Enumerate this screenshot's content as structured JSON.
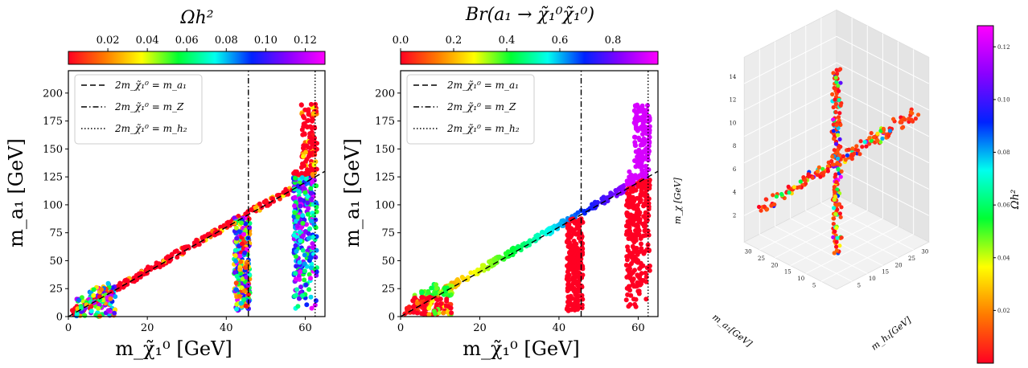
{
  "colormap_stops": [
    "#ff0022",
    "#ff7a00",
    "#ffff00",
    "#00ff33",
    "#00ffee",
    "#0022ff",
    "#8a00ff",
    "#ff00ff"
  ],
  "chart_data": [
    {
      "type": "scatter",
      "colorbar": {
        "label": "Ωh²",
        "ticks": [
          "0.02",
          "0.04",
          "0.06",
          "0.08",
          "0.10",
          "0.12"
        ],
        "range": [
          0,
          0.13
        ]
      },
      "xlabel": "m_χ̃₁⁰ [GeV]",
      "ylabel": "m_a₁ [GeV]",
      "xlim": [
        0,
        65
      ],
      "ylim": [
        0,
        220
      ],
      "xticks": [
        "0",
        "20",
        "40",
        "60"
      ],
      "yticks": [
        "0",
        "25",
        "50",
        "75",
        "100",
        "125",
        "150",
        "175",
        "200"
      ],
      "legend": [
        "2m_χ̃₁⁰ = m_a₁",
        "2m_χ̃₁⁰ = m_Z",
        "2m_χ̃₁⁰ = m_h₂"
      ],
      "legend_position": "top-left",
      "lines": [
        {
          "name": "2m_χ̃₁⁰ = m_a₁",
          "style": "dashed",
          "x": [
            0,
            65
          ],
          "y": [
            0,
            130
          ]
        },
        {
          "name": "2m_χ̃₁⁰ = m_Z",
          "style": "dashdot",
          "x": [
            45.6,
            45.6
          ],
          "y": [
            0,
            220
          ]
        },
        {
          "name": "2m_χ̃₁⁰ = m_h₂",
          "style": "dotted",
          "x": [
            62.5,
            62.5
          ],
          "y": [
            0,
            220
          ]
        }
      ],
      "regions": [
        {
          "name": "diagonal band",
          "x": [
            1,
            58
          ],
          "y_over_x": 2.0,
          "color_value": "low"
        },
        {
          "name": "low-mass cluster",
          "x": [
            2,
            12
          ],
          "y": [
            0,
            30
          ],
          "color_value": "mixed"
        },
        {
          "name": "Z funnel",
          "x": [
            42,
            46
          ],
          "y": [
            5,
            90
          ],
          "color_value": "mixed"
        },
        {
          "name": "h2 funnel",
          "x": [
            57,
            63
          ],
          "y": [
            5,
            190
          ],
          "color_value": "mixed"
        }
      ]
    },
    {
      "type": "scatter",
      "colorbar": {
        "label": "Br(a₁ → χ̃₁⁰χ̃₁⁰)",
        "ticks": [
          "0.0",
          "0.2",
          "0.4",
          "0.6",
          "0.8"
        ],
        "range": [
          0,
          0.97
        ]
      },
      "xlabel": "m_χ̃₁⁰ [GeV]",
      "ylabel": "m_a₁ [GeV]",
      "xlim": [
        0,
        65
      ],
      "ylim": [
        0,
        220
      ],
      "xticks": [
        "0",
        "20",
        "40",
        "60"
      ],
      "yticks": [
        "0",
        "25",
        "50",
        "75",
        "100",
        "125",
        "150",
        "175",
        "200"
      ],
      "legend": [
        "2m_χ̃₁⁰ = m_a₁",
        "2m_χ̃₁⁰ = m_Z",
        "2m_χ̃₁⁰ = m_h₂"
      ],
      "legend_position": "top-left",
      "lines": [
        {
          "name": "2m_χ̃₁⁰ = m_a₁",
          "style": "dashed",
          "x": [
            0,
            65
          ],
          "y": [
            0,
            130
          ]
        },
        {
          "name": "2m_χ̃₁⁰ = m_Z",
          "style": "dashdot",
          "x": [
            45.6,
            45.6
          ],
          "y": [
            0,
            220
          ]
        },
        {
          "name": "2m_χ̃₁⁰ = m_h₂",
          "style": "dotted",
          "x": [
            62.5,
            62.5
          ],
          "y": [
            0,
            220
          ]
        }
      ],
      "regions": [
        {
          "name": "diagonal band",
          "x": [
            1,
            62
          ],
          "y_over_x": 2.0,
          "color_value": "increases with x"
        },
        {
          "name": "low-mass cluster",
          "x": [
            3,
            13
          ],
          "y": [
            2,
            30
          ],
          "color_value": "0.0 to 0.5"
        },
        {
          "name": "Z funnel",
          "x": [
            42,
            46
          ],
          "y": [
            5,
            88
          ],
          "color_value": "0.0"
        },
        {
          "name": "h2 funnel",
          "x": [
            57,
            63
          ],
          "y": [
            5,
            190
          ],
          "color_value": "0.0 below diagonal, ~0.95 above"
        }
      ]
    },
    {
      "type": "scatter3d",
      "colorbar": {
        "label": "Ωh²",
        "ticks": [
          "0.02",
          "0.04",
          "0.06",
          "0.08",
          "0.10",
          "0.12"
        ],
        "range": [
          0,
          0.128
        ]
      },
      "xlabel": "m_h₁[GeV]",
      "ylabel": "m_a₁[GeV]",
      "zlabel": "m_χ [GeV]",
      "xticks": [
        "5",
        "10",
        "15",
        "20",
        "25",
        "30"
      ],
      "yticks": [
        "5",
        "10",
        "15",
        "20",
        "25",
        "30"
      ],
      "zticks": [
        "2",
        "4",
        "6",
        "8",
        "10",
        "12",
        "14"
      ],
      "regions": [
        {
          "name": "branch 1",
          "description": "points forming one arm of an X shape"
        },
        {
          "name": "branch 2",
          "description": "points forming second arm of an X shape"
        }
      ]
    }
  ]
}
